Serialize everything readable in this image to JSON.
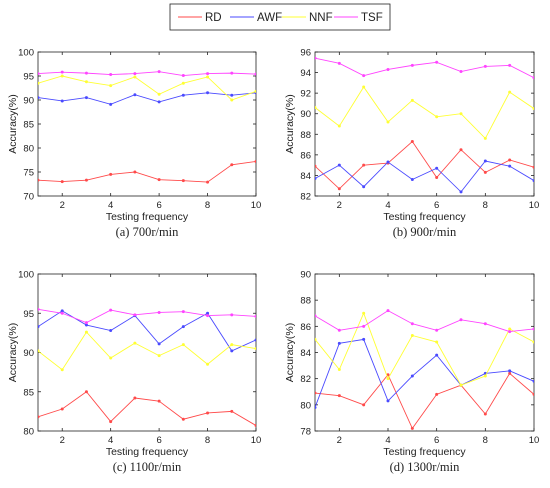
{
  "legend": {
    "items": [
      {
        "label": "RD",
        "color": "#ff4a4a"
      },
      {
        "label": "AWF",
        "color": "#4a4aff"
      },
      {
        "label": "NNF",
        "color": "#ffff33"
      },
      {
        "label": "TSF",
        "color": "#ff44ff"
      }
    ],
    "placement": "top-center"
  },
  "chart_data": [
    {
      "type": "line",
      "caption": "(a) 700r/min",
      "xlabel": "Testing frequency",
      "ylabel": "Accuracy(%)",
      "xlim": [
        1,
        10
      ],
      "ylim": [
        70,
        100
      ],
      "xticks": [
        2,
        4,
        6,
        8,
        10
      ],
      "yticks": [
        70,
        75,
        80,
        85,
        90,
        95,
        100
      ],
      "grid": false,
      "x": [
        1,
        2,
        3,
        4,
        5,
        6,
        7,
        8,
        9,
        10
      ],
      "series": [
        {
          "name": "RD",
          "color": "#ff4a4a",
          "values": [
            73.3,
            73.0,
            73.3,
            74.5,
            75.0,
            73.4,
            73.2,
            72.9,
            76.5,
            77.2
          ]
        },
        {
          "name": "AWF",
          "color": "#4a4aff",
          "values": [
            90.5,
            89.8,
            90.5,
            89.1,
            91.1,
            89.6,
            91.0,
            91.5,
            91.0,
            91.5
          ]
        },
        {
          "name": "NNF",
          "color": "#ffff33",
          "values": [
            93.5,
            95.0,
            93.8,
            93.0,
            94.8,
            91.2,
            93.5,
            94.8,
            90.0,
            91.8
          ]
        },
        {
          "name": "TSF",
          "color": "#ff44ff",
          "values": [
            95.5,
            95.8,
            95.6,
            95.3,
            95.5,
            95.9,
            95.1,
            95.5,
            95.6,
            95.4
          ]
        }
      ]
    },
    {
      "type": "line",
      "caption": "(b) 900r/min",
      "xlabel": "Testing frequency",
      "ylabel": "Accuracy(%)",
      "xlim": [
        1,
        10
      ],
      "ylim": [
        82,
        96
      ],
      "xticks": [
        2,
        4,
        6,
        8,
        10
      ],
      "yticks": [
        82,
        84,
        86,
        88,
        90,
        92,
        94,
        96
      ],
      "grid": false,
      "x": [
        1,
        2,
        3,
        4,
        5,
        6,
        7,
        8,
        9,
        10
      ],
      "series": [
        {
          "name": "RD",
          "color": "#ff4a4a",
          "values": [
            84.9,
            82.7,
            85.0,
            85.2,
            87.3,
            83.8,
            86.5,
            84.3,
            85.5,
            84.8
          ]
        },
        {
          "name": "AWF",
          "color": "#4a4aff",
          "values": [
            83.7,
            85.0,
            82.9,
            85.3,
            83.6,
            84.7,
            82.4,
            85.4,
            84.9,
            83.5
          ]
        },
        {
          "name": "NNF",
          "color": "#ffff33",
          "values": [
            90.6,
            88.8,
            92.6,
            89.2,
            91.3,
            89.7,
            90.0,
            87.6,
            92.1,
            90.5
          ]
        },
        {
          "name": "TSF",
          "color": "#ff44ff",
          "values": [
            95.4,
            94.9,
            93.7,
            94.3,
            94.7,
            95.0,
            94.1,
            94.6,
            94.7,
            93.5
          ]
        }
      ]
    },
    {
      "type": "line",
      "caption": "(c) 1100r/min",
      "xlabel": "Testing frequency",
      "ylabel": "Accuracy(%)",
      "xlim": [
        1,
        10
      ],
      "ylim": [
        80,
        100
      ],
      "xticks": [
        2,
        4,
        6,
        8,
        10
      ],
      "yticks": [
        80,
        85,
        90,
        95,
        100
      ],
      "grid": false,
      "x": [
        1,
        2,
        3,
        4,
        5,
        6,
        7,
        8,
        9,
        10
      ],
      "series": [
        {
          "name": "RD",
          "color": "#ff4a4a",
          "values": [
            81.8,
            82.8,
            85.0,
            81.2,
            84.2,
            83.8,
            81.5,
            82.3,
            82.5,
            80.7
          ]
        },
        {
          "name": "AWF",
          "color": "#4a4aff",
          "values": [
            93.3,
            95.3,
            93.5,
            92.8,
            94.7,
            91.1,
            93.3,
            95.0,
            90.2,
            91.6
          ]
        },
        {
          "name": "NNF",
          "color": "#ffff33",
          "values": [
            90.2,
            87.8,
            92.6,
            89.3,
            91.2,
            89.6,
            91.0,
            88.5,
            91.0,
            90.5
          ]
        },
        {
          "name": "TSF",
          "color": "#ff44ff",
          "values": [
            95.5,
            95.0,
            93.8,
            95.4,
            94.8,
            95.1,
            95.2,
            94.7,
            94.8,
            94.6
          ]
        }
      ]
    },
    {
      "type": "line",
      "caption": "(d) 1300r/min",
      "xlabel": "Testing frequency",
      "ylabel": "Accuracy(%)",
      "xlim": [
        1,
        10
      ],
      "ylim": [
        78,
        90
      ],
      "xticks": [
        2,
        4,
        6,
        8,
        10
      ],
      "yticks": [
        78,
        80,
        82,
        84,
        86,
        88,
        90
      ],
      "grid": false,
      "x": [
        1,
        2,
        3,
        4,
        5,
        6,
        7,
        8,
        9,
        10
      ],
      "series": [
        {
          "name": "RD",
          "color": "#ff4a4a",
          "values": [
            80.9,
            80.7,
            80.0,
            82.3,
            78.2,
            80.8,
            81.5,
            79.3,
            82.4,
            80.8
          ]
        },
        {
          "name": "AWF",
          "color": "#4a4aff",
          "values": [
            79.8,
            84.7,
            85.0,
            80.3,
            82.2,
            83.8,
            81.5,
            82.4,
            82.6,
            81.8
          ]
        },
        {
          "name": "NNF",
          "color": "#ffff33",
          "values": [
            85.0,
            82.7,
            87.0,
            82.0,
            85.3,
            84.8,
            81.5,
            82.2,
            85.8,
            84.8
          ]
        },
        {
          "name": "TSF",
          "color": "#ff44ff",
          "values": [
            86.8,
            85.7,
            86.0,
            87.2,
            86.2,
            85.7,
            86.5,
            86.2,
            85.6,
            85.8
          ]
        }
      ]
    }
  ]
}
